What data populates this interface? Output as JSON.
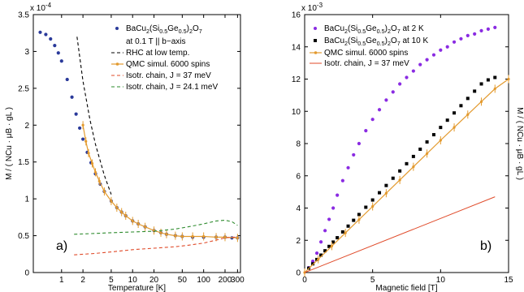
{
  "chart_data": [
    {
      "type": "line",
      "panel_label": "a)",
      "xlabel": "Temperature [K]",
      "ylabel": "M / ( N_Cu · μ_B · g_L )",
      "y_multiplier": "x 10",
      "y_multiplier_exp": "-4",
      "xscale": "log",
      "xlim": [
        0.4,
        330
      ],
      "ylim": [
        0,
        3.5
      ],
      "xticks": [
        1,
        2,
        5,
        10,
        20,
        50,
        100,
        200,
        300
      ],
      "xtick_labels": [
        "1",
        "2",
        "5",
        "10",
        "20",
        "50",
        "100",
        "200",
        "300"
      ],
      "yticks": [
        0,
        0.5,
        1,
        1.5,
        2,
        2.5,
        3,
        3.5
      ],
      "ytick_labels": [
        "0",
        "0.5",
        "1",
        "1.5",
        "2",
        "2.5",
        "3",
        "3.5"
      ],
      "legend_position": "top-right",
      "legend": [
        {
          "text": "BaCu2(Si0.5Ge0.5)2O7",
          "text_parts": [
            "BaCu",
            "2",
            "(Si",
            "0.5",
            "Ge",
            "0.5",
            ")",
            "2",
            "O",
            "7"
          ],
          "color": "#2a3a9a",
          "marker": "dot"
        },
        {
          "text": "at 0.1 T || b−axis",
          "color": "",
          "marker": "none"
        },
        {
          "text": "RHC at low temp.",
          "color": "#000000",
          "marker": "dash"
        },
        {
          "text": "QMC simul. 6000 spins",
          "color": "#e39a2e",
          "marker": "line-dot"
        },
        {
          "text": "Isotr. chain, J = 37 meV",
          "color": "#e04b2a",
          "marker": "dash"
        },
        {
          "text": "Isotr. chain, J = 24.1 meV",
          "color": "#2e8b2e",
          "marker": "dash"
        }
      ],
      "series": [
        {
          "name": "BaCu2(Si0.5Ge0.5)2O7",
          "style": "dots",
          "color": "#2a3a9a",
          "x": [
            0.5,
            0.6,
            0.7,
            0.8,
            0.9,
            1.0,
            1.2,
            1.4,
            1.6,
            1.8,
            2.0,
            2.3,
            2.6,
            3.0,
            3.5,
            4,
            5,
            6,
            7,
            8,
            10,
            12,
            15,
            20,
            25,
            30,
            40,
            50,
            70,
            100,
            150,
            200,
            250,
            300
          ],
          "y": [
            3.26,
            3.23,
            3.17,
            3.08,
            2.98,
            2.87,
            2.62,
            2.38,
            2.15,
            1.96,
            1.81,
            1.63,
            1.49,
            1.34,
            1.2,
            1.1,
            0.97,
            0.88,
            0.82,
            0.77,
            0.7,
            0.66,
            0.62,
            0.57,
            0.54,
            0.52,
            0.5,
            0.49,
            0.48,
            0.48,
            0.48,
            0.48,
            0.47,
            0.47
          ]
        },
        {
          "name": "RHC at low temp.",
          "style": "dash",
          "color": "#000000",
          "x": [
            1.65,
            2.0,
            2.5,
            3.0,
            4.0,
            5.0
          ],
          "y": [
            3.2,
            2.6,
            2.08,
            1.74,
            1.32,
            1.06
          ]
        },
        {
          "name": "QMC simul. 6000 spins",
          "style": "line-dot",
          "color": "#e39a2e",
          "x": [
            2.0,
            2.2,
            2.4,
            2.7,
            3.0,
            3.4,
            4,
            5,
            6,
            7,
            8,
            10,
            12,
            15,
            20,
            25,
            30,
            40,
            50,
            70,
            100,
            150,
            200,
            300
          ],
          "y": [
            2.0,
            1.78,
            1.62,
            1.48,
            1.36,
            1.24,
            1.1,
            0.97,
            0.88,
            0.82,
            0.77,
            0.7,
            0.66,
            0.62,
            0.57,
            0.54,
            0.52,
            0.5,
            0.49,
            0.49,
            0.49,
            0.48,
            0.48,
            0.47
          ]
        },
        {
          "name": "Isotr. chain, J = 37 meV",
          "style": "dash",
          "color": "#e04b2a",
          "x": [
            1.5,
            3,
            5,
            10,
            20,
            40,
            60,
            100,
            150,
            200,
            250,
            300
          ],
          "y": [
            0.24,
            0.26,
            0.28,
            0.31,
            0.33,
            0.35,
            0.37,
            0.4,
            0.44,
            0.47,
            0.48,
            0.48
          ]
        },
        {
          "name": "Isotr. chain, J = 24.1 meV",
          "style": "dash",
          "color": "#2e8b2e",
          "x": [
            1.5,
            3,
            5,
            10,
            20,
            40,
            60,
            100,
            150,
            200,
            250,
            300
          ],
          "y": [
            0.52,
            0.53,
            0.54,
            0.55,
            0.56,
            0.59,
            0.62,
            0.66,
            0.7,
            0.71,
            0.69,
            0.64
          ]
        }
      ]
    },
    {
      "type": "scatter",
      "panel_label": "b)",
      "xlabel": "Magnetic field [T]",
      "ylabel_right": "M / ( N_Cu · μ_B · g_L )",
      "y_multiplier": "x 10",
      "y_multiplier_exp": "-3",
      "xlim": [
        0,
        15
      ],
      "ylim": [
        0,
        16
      ],
      "xticks": [
        0,
        5,
        10,
        15
      ],
      "xtick_labels": [
        "0",
        "5",
        "10",
        "15"
      ],
      "yticks": [
        0,
        2,
        4,
        6,
        8,
        10,
        12,
        14,
        16
      ],
      "ytick_labels": [
        "0",
        "2",
        "4",
        "6",
        "8",
        "10",
        "12",
        "14",
        "16"
      ],
      "legend_position": "top-left",
      "legend": [
        {
          "text": "BaCu2(Si0.5Ge0.5)2O7 at 2 K",
          "text_parts": [
            "BaCu",
            "2",
            "(Si",
            "0.5",
            "Ge",
            "0.5",
            ")",
            "2",
            "O",
            "7",
            " at 2 K"
          ],
          "color": "#8a2be2",
          "marker": "dot"
        },
        {
          "text": "BaCu2(Si0.5Ge0.5)2O7 at 10 K",
          "text_parts": [
            "BaCu",
            "2",
            "(Si",
            "0.5",
            "Ge",
            "0.5",
            ")",
            "2",
            "O",
            "7",
            " at 10 K"
          ],
          "color": "#000000",
          "marker": "square"
        },
        {
          "text": "QMC simul. 6000 spins",
          "color": "#e39a2e",
          "marker": "line-dot"
        },
        {
          "text": "Isotr. chain, J = 37 meV",
          "color": "#e04b2a",
          "marker": "line"
        }
      ],
      "series": [
        {
          "name": "BaCu2(Si0.5Ge0.5)2O7 at 2 K",
          "style": "dots",
          "color": "#8a2be2",
          "x": [
            0.3,
            0.6,
            0.9,
            1.2,
            1.5,
            1.8,
            2.1,
            2.4,
            2.8,
            3.2,
            3.6,
            4.0,
            4.5,
            5.0,
            5.5,
            6.0,
            6.5,
            7.0,
            7.5,
            8.0,
            8.5,
            9.0,
            9.5,
            10.0,
            10.5,
            11.0,
            11.5,
            12.0,
            12.5,
            13.0,
            13.5,
            14.0
          ],
          "y": [
            0.3,
            0.7,
            1.2,
            1.9,
            2.6,
            3.3,
            4.0,
            4.8,
            5.7,
            6.5,
            7.3,
            8.0,
            8.8,
            9.5,
            10.1,
            10.7,
            11.2,
            11.7,
            12.1,
            12.5,
            12.9,
            13.2,
            13.5,
            13.8,
            14.0,
            14.3,
            14.5,
            14.7,
            14.8,
            15.0,
            15.1,
            15.2
          ]
        },
        {
          "name": "BaCu2(Si0.5Ge0.5)2O7 at 10 K",
          "style": "squares",
          "color": "#000000",
          "x": [
            0.3,
            0.6,
            0.9,
            1.2,
            1.5,
            1.8,
            2.1,
            2.4,
            2.8,
            3.2,
            3.6,
            4.0,
            4.5,
            5.0,
            5.5,
            6.0,
            6.5,
            7.0,
            7.5,
            8.0,
            8.5,
            9.0,
            9.5,
            10.0,
            10.5,
            11.0,
            11.5,
            12.0,
            12.5,
            13.0,
            13.5,
            14.0
          ],
          "y": [
            0.27,
            0.54,
            0.81,
            1.08,
            1.35,
            1.62,
            1.89,
            2.16,
            2.52,
            2.88,
            3.24,
            3.6,
            4.05,
            4.5,
            4.95,
            5.4,
            5.85,
            6.3,
            6.75,
            7.2,
            7.65,
            8.1,
            8.55,
            9.0,
            9.45,
            9.9,
            10.35,
            10.8,
            11.25,
            11.7,
            11.95,
            12.1
          ]
        },
        {
          "name": "QMC simul. 6000 spins",
          "style": "line-dot",
          "color": "#e39a2e",
          "x": [
            0,
            1,
            2,
            3,
            4,
            5,
            6,
            7,
            8,
            9,
            10,
            11,
            12,
            13,
            14,
            15
          ],
          "y": [
            0,
            0.82,
            1.64,
            2.46,
            3.28,
            4.1,
            4.92,
            5.74,
            6.56,
            7.38,
            8.2,
            9.0,
            9.8,
            10.6,
            11.4,
            12.0
          ]
        },
        {
          "name": "Isotr. chain, J = 37 meV",
          "style": "line",
          "color": "#e04b2a",
          "x": [
            0,
            14
          ],
          "y": [
            0,
            4.7
          ]
        }
      ]
    }
  ]
}
